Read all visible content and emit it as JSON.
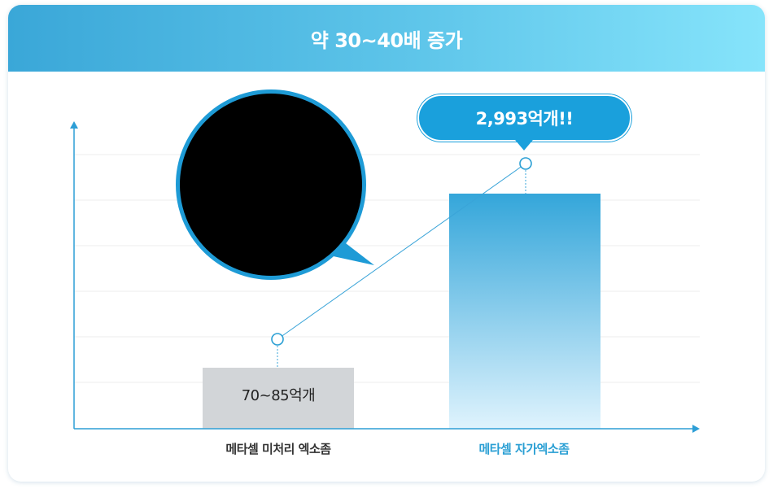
{
  "header": {
    "title": "약 30~40배 증가"
  },
  "chart_data": {
    "type": "bar",
    "categories": [
      "메타셀 미처리 엑소좀",
      "메타셀 자가엑소좀"
    ],
    "values": [
      77.5,
      2993
    ],
    "value_labels": [
      "70~85억개",
      "2,993억개!!"
    ],
    "bar_colors": [
      "#d2d5d8",
      "#35a8dc"
    ],
    "title": "",
    "xlabel": "",
    "ylabel": "",
    "grid": true,
    "legend": "none"
  },
  "colors": {
    "accent": "#1aa0dc",
    "axis": "#2d9ed6",
    "highlight_label": "#2a9fd4"
  },
  "icons": {
    "callout_image": "black-circle-photo"
  }
}
